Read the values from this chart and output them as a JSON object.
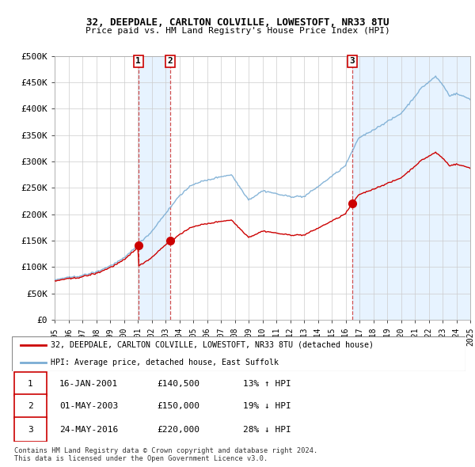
{
  "title1": "32, DEEPDALE, CARLTON COLVILLE, LOWESTOFT, NR33 8TU",
  "title2": "Price paid vs. HM Land Registry's House Price Index (HPI)",
  "ylim": [
    0,
    500000
  ],
  "yticks": [
    0,
    50000,
    100000,
    150000,
    200000,
    250000,
    300000,
    350000,
    400000,
    450000,
    500000
  ],
  "ytick_labels": [
    "£0",
    "£50K",
    "£100K",
    "£150K",
    "£200K",
    "£250K",
    "£300K",
    "£350K",
    "£400K",
    "£450K",
    "£500K"
  ],
  "sale_prices": [
    140500,
    150000,
    220000
  ],
  "sale_labels": [
    "1",
    "2",
    "3"
  ],
  "hpi_color": "#7aadd4",
  "sold_color": "#cc0000",
  "legend_line1": "32, DEEPDALE, CARLTON COLVILLE, LOWESTOFT, NR33 8TU (detached house)",
  "legend_line2": "HPI: Average price, detached house, East Suffolk",
  "table_rows": [
    [
      "1",
      "16-JAN-2001",
      "£140,500",
      "13% ↑ HPI"
    ],
    [
      "2",
      "01-MAY-2003",
      "£150,000",
      "19% ↓ HPI"
    ],
    [
      "3",
      "24-MAY-2016",
      "£220,000",
      "28% ↓ HPI"
    ]
  ],
  "footnote1": "Contains HM Land Registry data © Crown copyright and database right 2024.",
  "footnote2": "This data is licensed under the Open Government Licence v3.0.",
  "background_color": "#ffffff",
  "grid_color": "#cccccc",
  "shade_color": "#ddeeff"
}
